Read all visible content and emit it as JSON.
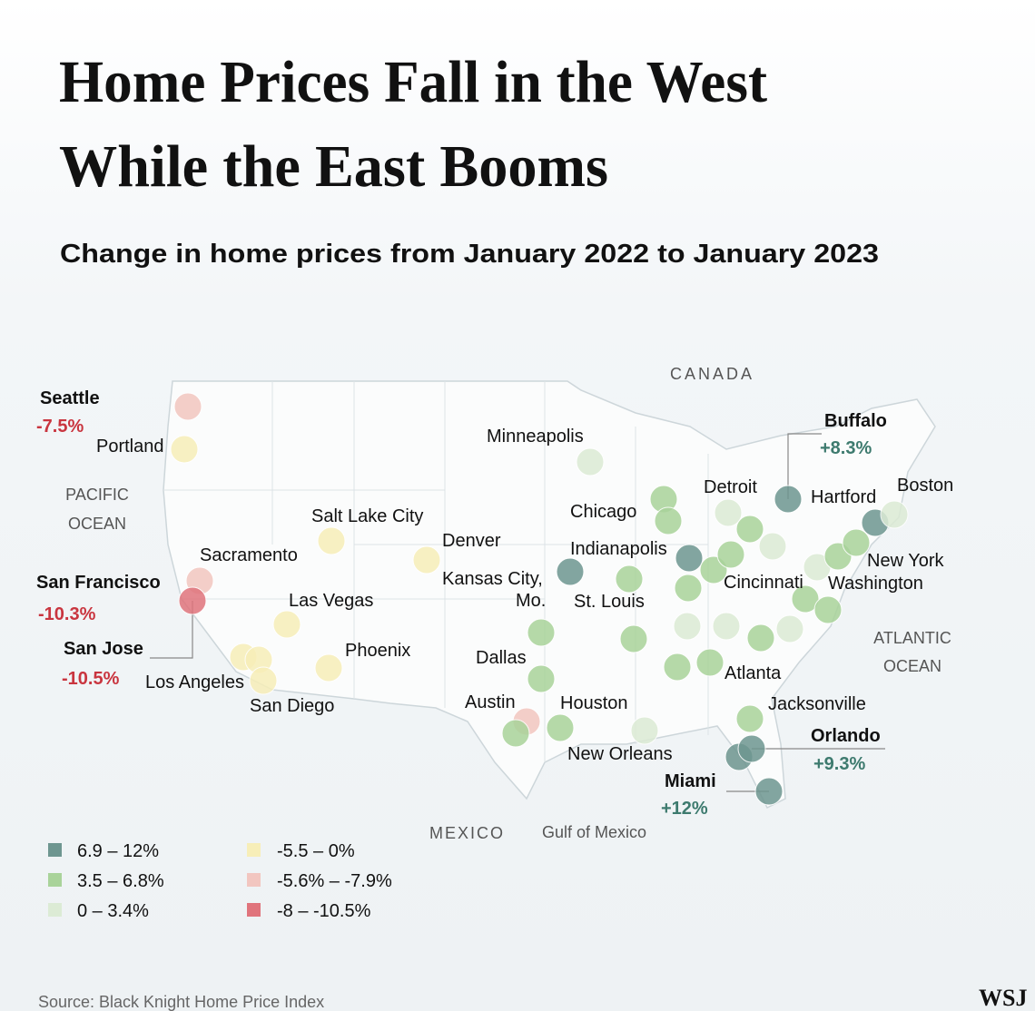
{
  "header": {
    "title_lines": [
      "Home Prices Fall in the West",
      "While the East Booms"
    ],
    "subtitle": "Change in home prices from January 2022 to January 2023"
  },
  "map": {
    "regions": [
      {
        "lines": [
          "CANADA"
        ]
      },
      {
        "lines": [
          "PACIFIC",
          "OCEAN"
        ]
      },
      {
        "lines": [
          "ATLANTIC",
          "OCEAN"
        ]
      },
      {
        "lines": [
          "MEXICO"
        ]
      },
      {
        "lines": [
          "Gulf of Mexico"
        ]
      }
    ],
    "cities": [
      {
        "name": "Seattle",
        "change": "-7.5%"
      },
      {
        "name": "Portland"
      },
      {
        "name": "Salt Lake City"
      },
      {
        "name": "Sacramento"
      },
      {
        "name": "San Francisco",
        "change": "-10.3%"
      },
      {
        "name": "Las Vegas"
      },
      {
        "name": "San Jose",
        "change": "-10.5%"
      },
      {
        "name": "Los Angeles"
      },
      {
        "name": "San Diego"
      },
      {
        "name": "Phoenix"
      },
      {
        "name": "Denver"
      },
      {
        "name": "Kansas City,"
      },
      {
        "name": "Mo."
      },
      {
        "name": "Minneapolis"
      },
      {
        "name": "Chicago"
      },
      {
        "name": "Indianapolis"
      },
      {
        "name": "St. Louis"
      },
      {
        "name": "Dallas"
      },
      {
        "name": "Austin"
      },
      {
        "name": "Houston"
      },
      {
        "name": "New Orleans"
      },
      {
        "name": "Detroit"
      },
      {
        "name": "Buffalo",
        "change": "+8.3%"
      },
      {
        "name": "Hartford"
      },
      {
        "name": "Boston"
      },
      {
        "name": "New York"
      },
      {
        "name": "Cincinnati"
      },
      {
        "name": "Washington"
      },
      {
        "name": "Atlanta"
      },
      {
        "name": "Jacksonville"
      },
      {
        "name": "Orlando",
        "change": "+9.3%"
      },
      {
        "name": "Miami",
        "change": "+12%"
      }
    ]
  },
  "legend": [
    "6.9 – 12%",
    "3.5 – 6.8%",
    "0 – 3.4%",
    "-5.5 – 0%",
    "-5.6% – -7.9%",
    "-8 – -10.5%"
  ],
  "footer": {
    "source": "Source: Black Knight Home Price Index",
    "logo": "WSJ"
  }
}
